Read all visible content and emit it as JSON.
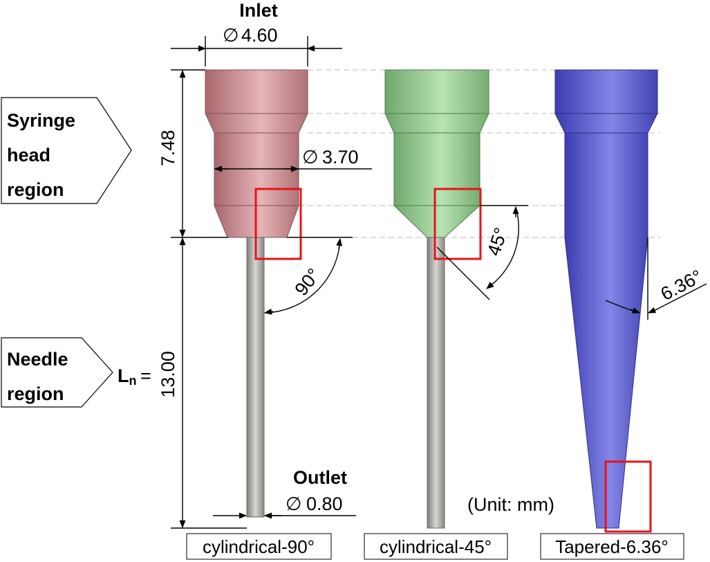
{
  "labels": {
    "inlet": "Inlet",
    "outlet": "Outlet",
    "syringe_region": [
      "Syringe",
      "head",
      "region"
    ],
    "needle_region": [
      "Needle",
      "region"
    ],
    "ln_main": "L",
    "ln_sub": "n",
    "ln_eq": "=",
    "unit": "(Unit: mm)",
    "diameter_symbol": "∅"
  },
  "dimensions": {
    "inlet_diameter": "4.60",
    "head_diameter": "3.70",
    "outlet_diameter": "0.80",
    "head_length": "7.48",
    "needle_length": "13.00",
    "angle_90": "90°",
    "angle_45": "45°",
    "angle_taper": "6.36°"
  },
  "captions": [
    "cylindrical-90°",
    "cylindrical-45°",
    "Tapered-6.36°"
  ],
  "colors": {
    "nozzle_90": "#c98c90",
    "nozzle_45": "#93c88f",
    "nozzle_taper": "#5a5ccc",
    "needle": "#a8a59f",
    "highlight_box": "#e8121b"
  }
}
